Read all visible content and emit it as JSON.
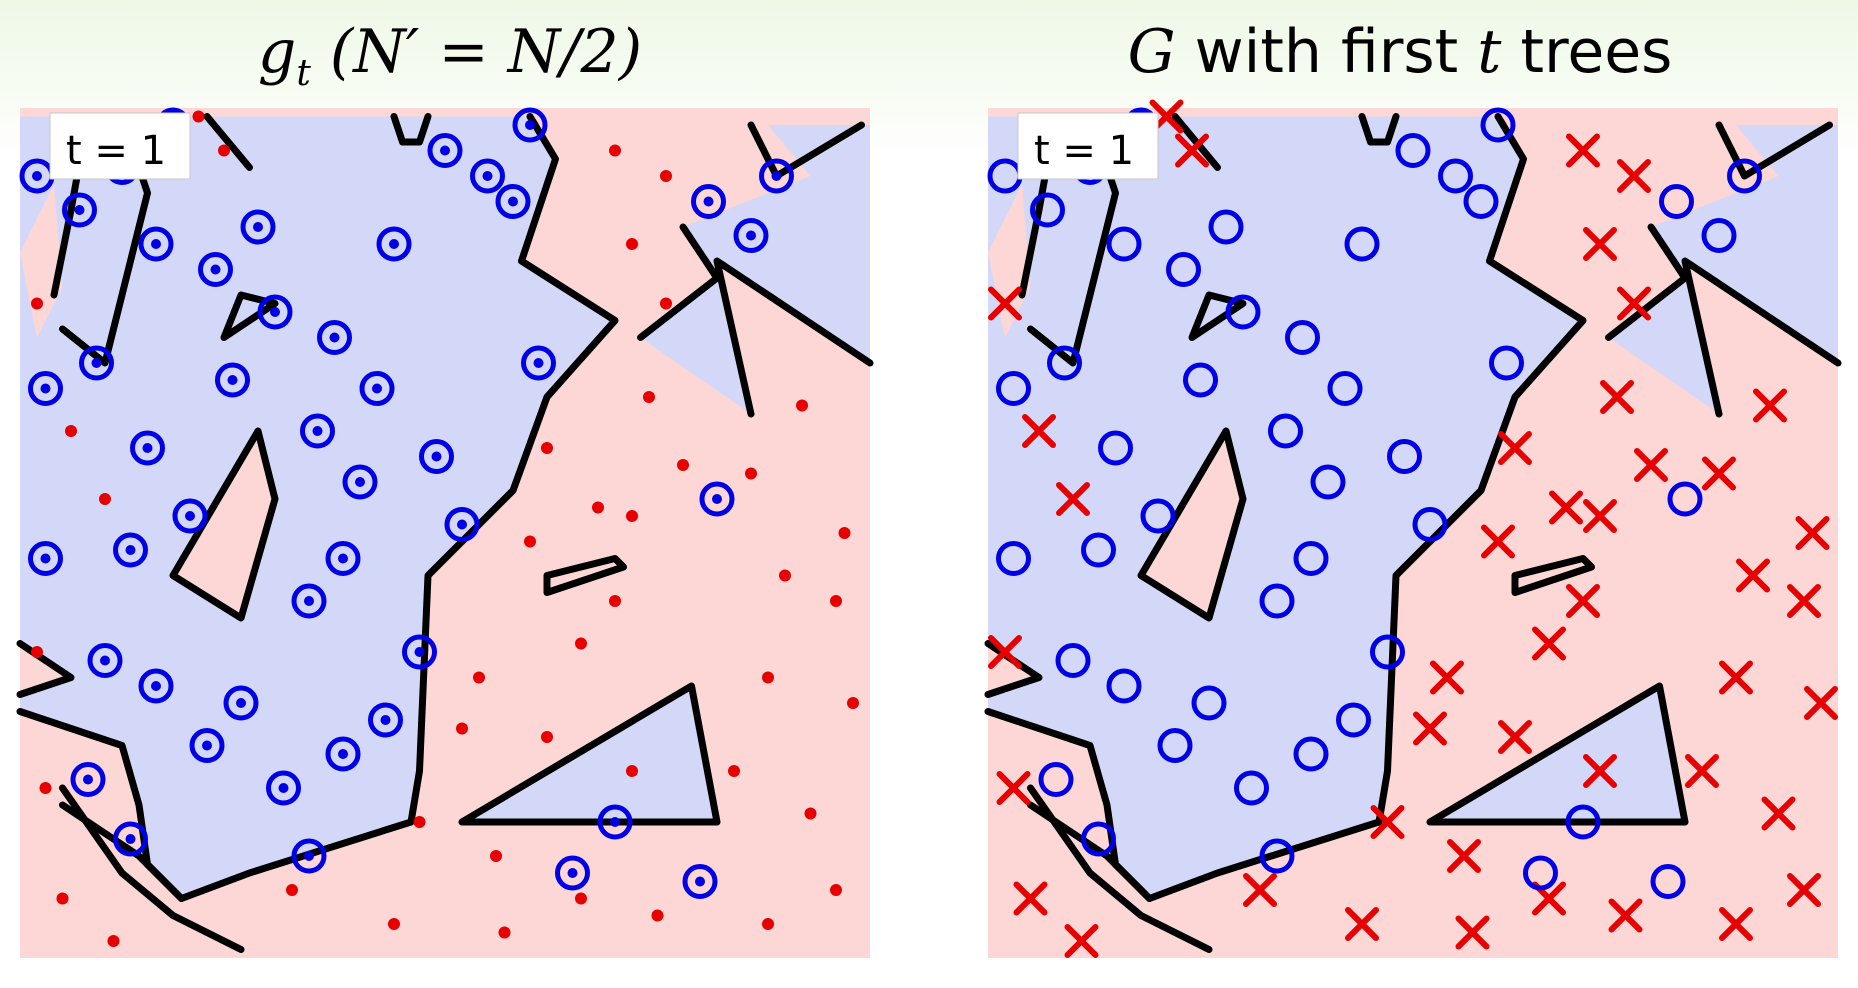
{
  "charts": [
    {
      "title_parts": [
        "g",
        "t",
        " (N′ = N/2)"
      ],
      "annotation": "t = 1",
      "marker_style": "small"
    },
    {
      "title_parts": [
        "G",
        " with first ",
        "t",
        " trees"
      ],
      "annotation": "t = 1",
      "marker_style": "large"
    }
  ],
  "colors": {
    "blue_region": "#d4d8f8",
    "red_region": "#fdd6d6",
    "blue_marker": "#0000e6",
    "red_marker": "#e60000",
    "boundary": "#000000"
  },
  "chart_data": [
    {
      "type": "scatter",
      "title": "g_t (N′ = N/2)",
      "annotation": "t = 1",
      "xlim": [
        0,
        1
      ],
      "ylim": [
        0,
        1
      ],
      "series": [
        {
          "marker": "circle",
          "points": [
            [
              0.02,
              0.92
            ],
            [
              0.07,
              0.88
            ],
            [
              0.12,
              0.93
            ],
            [
              0.16,
              0.84
            ],
            [
              0.09,
              0.7
            ],
            [
              0.03,
              0.67
            ],
            [
              0.15,
              0.6
            ],
            [
              0.2,
              0.52
            ],
            [
              0.13,
              0.48
            ],
            [
              0.03,
              0.47
            ],
            [
              0.1,
              0.35
            ],
            [
              0.16,
              0.32
            ],
            [
              0.22,
              0.25
            ],
            [
              0.08,
              0.21
            ],
            [
              0.13,
              0.14
            ],
            [
              0.26,
              0.3
            ],
            [
              0.31,
              0.2
            ],
            [
              0.34,
              0.12
            ],
            [
              0.23,
              0.81
            ],
            [
              0.25,
              0.68
            ],
            [
              0.3,
              0.76
            ],
            [
              0.37,
              0.73
            ],
            [
              0.42,
              0.67
            ],
            [
              0.4,
              0.56
            ],
            [
              0.38,
              0.47
            ],
            [
              0.34,
              0.42
            ],
            [
              0.49,
              0.59
            ],
            [
              0.52,
              0.51
            ],
            [
              0.47,
              0.36
            ],
            [
              0.43,
              0.28
            ],
            [
              0.38,
              0.24
            ],
            [
              0.35,
              0.62
            ],
            [
              0.44,
              0.84
            ],
            [
              0.5,
              0.95
            ],
            [
              0.55,
              0.92
            ],
            [
              0.61,
              0.7
            ],
            [
              0.81,
              0.89
            ],
            [
              0.86,
              0.85
            ],
            [
              0.82,
              0.54
            ],
            [
              0.65,
              0.1
            ],
            [
              0.7,
              0.16
            ],
            [
              0.8,
              0.09
            ],
            [
              0.58,
              0.89
            ],
            [
              0.28,
              0.86
            ],
            [
              0.18,
              0.98
            ],
            [
              0.6,
              0.98
            ],
            [
              0.89,
              0.92
            ]
          ]
        },
        {
          "marker": "x",
          "points": [
            [
              0.02,
              0.77
            ],
            [
              0.06,
              0.62
            ],
            [
              0.02,
              0.36
            ],
            [
              0.03,
              0.2
            ],
            [
              0.05,
              0.07
            ],
            [
              0.11,
              0.02
            ],
            [
              0.32,
              0.08
            ],
            [
              0.52,
              0.27
            ],
            [
              0.54,
              0.33
            ],
            [
              0.56,
              0.12
            ],
            [
              0.62,
              0.26
            ],
            [
              0.66,
              0.37
            ],
            [
              0.7,
              0.42
            ],
            [
              0.72,
              0.52
            ],
            [
              0.78,
              0.58
            ],
            [
              0.86,
              0.57
            ],
            [
              0.9,
              0.45
            ],
            [
              0.96,
              0.42
            ],
            [
              0.98,
              0.3
            ],
            [
              0.93,
              0.17
            ],
            [
              0.96,
              0.08
            ],
            [
              0.88,
              0.04
            ],
            [
              0.75,
              0.05
            ],
            [
              0.72,
              0.22
            ],
            [
              0.68,
              0.53
            ],
            [
              0.6,
              0.49
            ],
            [
              0.62,
              0.6
            ],
            [
              0.74,
              0.66
            ],
            [
              0.76,
              0.77
            ],
            [
              0.72,
              0.84
            ],
            [
              0.76,
              0.92
            ],
            [
              0.7,
              0.95
            ],
            [
              0.88,
              0.33
            ],
            [
              0.84,
              0.22
            ],
            [
              0.92,
              0.65
            ],
            [
              0.97,
              0.5
            ],
            [
              0.57,
              0.03
            ],
            [
              0.66,
              0.07
            ],
            [
              0.47,
              0.16
            ],
            [
              0.44,
              0.04
            ],
            [
              0.21,
              0.99
            ],
            [
              0.24,
              0.95
            ],
            [
              0.1,
              0.54
            ]
          ]
        }
      ]
    },
    {
      "type": "scatter",
      "title": "G with first t trees",
      "annotation": "t = 1",
      "xlim": [
        0,
        1
      ],
      "ylim": [
        0,
        1
      ],
      "series": [
        {
          "marker": "circle",
          "points": [
            [
              0.02,
              0.92
            ],
            [
              0.07,
              0.88
            ],
            [
              0.12,
              0.93
            ],
            [
              0.16,
              0.84
            ],
            [
              0.09,
              0.7
            ],
            [
              0.03,
              0.67
            ],
            [
              0.15,
              0.6
            ],
            [
              0.2,
              0.52
            ],
            [
              0.13,
              0.48
            ],
            [
              0.03,
              0.47
            ],
            [
              0.1,
              0.35
            ],
            [
              0.16,
              0.32
            ],
            [
              0.22,
              0.25
            ],
            [
              0.08,
              0.21
            ],
            [
              0.13,
              0.14
            ],
            [
              0.26,
              0.3
            ],
            [
              0.31,
              0.2
            ],
            [
              0.34,
              0.12
            ],
            [
              0.23,
              0.81
            ],
            [
              0.25,
              0.68
            ],
            [
              0.3,
              0.76
            ],
            [
              0.37,
              0.73
            ],
            [
              0.42,
              0.67
            ],
            [
              0.4,
              0.56
            ],
            [
              0.38,
              0.47
            ],
            [
              0.34,
              0.42
            ],
            [
              0.49,
              0.59
            ],
            [
              0.52,
              0.51
            ],
            [
              0.47,
              0.36
            ],
            [
              0.43,
              0.28
            ],
            [
              0.38,
              0.24
            ],
            [
              0.35,
              0.62
            ],
            [
              0.44,
              0.84
            ],
            [
              0.5,
              0.95
            ],
            [
              0.55,
              0.92
            ],
            [
              0.61,
              0.7
            ],
            [
              0.81,
              0.89
            ],
            [
              0.86,
              0.85
            ],
            [
              0.82,
              0.54
            ],
            [
              0.65,
              0.1
            ],
            [
              0.7,
              0.16
            ],
            [
              0.8,
              0.09
            ],
            [
              0.58,
              0.89
            ],
            [
              0.28,
              0.86
            ],
            [
              0.18,
              0.98
            ],
            [
              0.6,
              0.98
            ],
            [
              0.89,
              0.92
            ]
          ]
        },
        {
          "marker": "x",
          "points": [
            [
              0.02,
              0.77
            ],
            [
              0.06,
              0.62
            ],
            [
              0.02,
              0.36
            ],
            [
              0.03,
              0.2
            ],
            [
              0.05,
              0.07
            ],
            [
              0.11,
              0.02
            ],
            [
              0.32,
              0.08
            ],
            [
              0.52,
              0.27
            ],
            [
              0.54,
              0.33
            ],
            [
              0.56,
              0.12
            ],
            [
              0.62,
              0.26
            ],
            [
              0.66,
              0.37
            ],
            [
              0.7,
              0.42
            ],
            [
              0.72,
              0.52
            ],
            [
              0.78,
              0.58
            ],
            [
              0.86,
              0.57
            ],
            [
              0.9,
              0.45
            ],
            [
              0.96,
              0.42
            ],
            [
              0.98,
              0.3
            ],
            [
              0.93,
              0.17
            ],
            [
              0.96,
              0.08
            ],
            [
              0.88,
              0.04
            ],
            [
              0.75,
              0.05
            ],
            [
              0.72,
              0.22
            ],
            [
              0.68,
              0.53
            ],
            [
              0.6,
              0.49
            ],
            [
              0.62,
              0.6
            ],
            [
              0.74,
              0.66
            ],
            [
              0.76,
              0.77
            ],
            [
              0.72,
              0.84
            ],
            [
              0.76,
              0.92
            ],
            [
              0.7,
              0.95
            ],
            [
              0.88,
              0.33
            ],
            [
              0.84,
              0.22
            ],
            [
              0.92,
              0.65
            ],
            [
              0.97,
              0.5
            ],
            [
              0.57,
              0.03
            ],
            [
              0.66,
              0.07
            ],
            [
              0.47,
              0.16
            ],
            [
              0.44,
              0.04
            ],
            [
              0.21,
              0.99
            ],
            [
              0.24,
              0.95
            ],
            [
              0.1,
              0.54
            ]
          ]
        }
      ]
    }
  ]
}
